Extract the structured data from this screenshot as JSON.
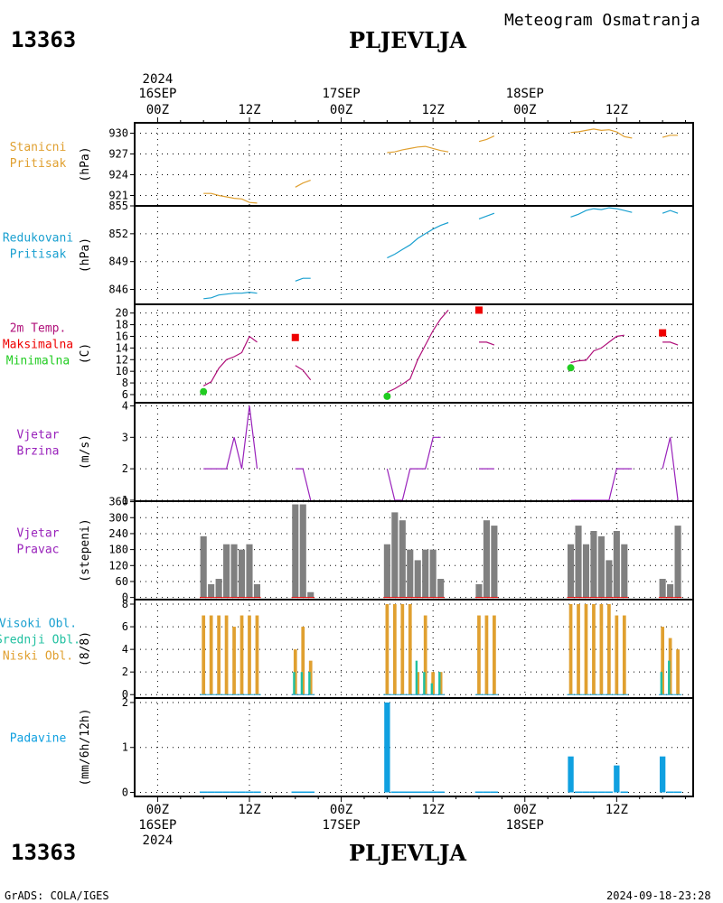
{
  "header": {
    "station_id": "13363",
    "station_name": "PLJEVLJA",
    "meteogram_title": "Meteogram Osmatranja"
  },
  "footer": {
    "station_id": "13363",
    "station_name": "PLJEVLJA",
    "credit": "GrADS: COLA/IGES",
    "timestamp": "2024-09-18-23:28"
  },
  "colors": {
    "pressure": "#e0a030",
    "reduced": "#1aa0d0",
    "temp_line": "#b0107a",
    "tmax": "#ee0000",
    "tmin": "#22cc22",
    "wind": "#9922bb",
    "bars_gray": "#808080",
    "cloud_low": "#e0a030",
    "cloud_mid": "#20c0a0",
    "cloud_high": "#1aa0d0",
    "precip": "#10a0e0"
  },
  "time_axis": {
    "top_year": "2024",
    "bottom_year": "2024",
    "major_labels": [
      {
        "t": 0,
        "hour": "00Z",
        "date": "16SEP"
      },
      {
        "t": 12,
        "hour": "12Z",
        "date": ""
      },
      {
        "t": 24,
        "hour": "00Z",
        "date": "17SEP"
      },
      {
        "t": 36,
        "hour": "12Z",
        "date": ""
      },
      {
        "t": 48,
        "hour": "00Z",
        "date": "18SEP"
      },
      {
        "t": 60,
        "hour": "12Z",
        "date": ""
      }
    ],
    "range": [
      -3,
      70
    ]
  },
  "chart_data": [
    {
      "id": "pressure",
      "type": "line",
      "label_lines": [
        "Stanicni",
        "Pritisak"
      ],
      "ylabel": "(hPa)",
      "ylim": [
        919.5,
        931.5
      ],
      "yticks": [
        921,
        924,
        927,
        930
      ],
      "segments": [
        [
          [
            6,
            921.3
          ],
          [
            7,
            921.3
          ],
          [
            8,
            921.0
          ],
          [
            9,
            920.8
          ],
          [
            10,
            920.6
          ],
          [
            11,
            920.5
          ],
          [
            12,
            920.0
          ],
          [
            13,
            919.9
          ]
        ],
        [
          [
            18,
            922.2
          ],
          [
            19,
            922.8
          ],
          [
            20,
            923.2
          ]
        ],
        [
          [
            30,
            927.2
          ],
          [
            31,
            927.3
          ],
          [
            32,
            927.6
          ],
          [
            33,
            927.8
          ],
          [
            34,
            928.0
          ],
          [
            35,
            928.1
          ],
          [
            36,
            927.8
          ],
          [
            37,
            927.5
          ],
          [
            38,
            927.3
          ]
        ],
        [
          [
            42,
            928.8
          ],
          [
            43,
            929.1
          ],
          [
            44,
            929.6
          ]
        ],
        [
          [
            54,
            930.1
          ],
          [
            55,
            930.2
          ],
          [
            56,
            930.4
          ],
          [
            57,
            930.6
          ],
          [
            58,
            930.4
          ],
          [
            59,
            930.5
          ],
          [
            60,
            930.2
          ],
          [
            61,
            929.5
          ],
          [
            62,
            929.3
          ]
        ],
        [
          [
            66,
            929.4
          ],
          [
            67,
            929.7
          ],
          [
            68,
            929.7
          ]
        ]
      ]
    },
    {
      "id": "reduced",
      "type": "line",
      "label_lines": [
        "Redukovani",
        "Pritisak"
      ],
      "ylabel": "(hPa)",
      "ylim": [
        844.4,
        855.0
      ],
      "yticks": [
        846,
        849,
        852,
        855
      ],
      "segments": [
        [
          [
            6,
            845.0
          ],
          [
            7,
            845.1
          ],
          [
            8,
            845.4
          ],
          [
            9,
            845.5
          ],
          [
            10,
            845.6
          ],
          [
            11,
            845.6
          ],
          [
            12,
            845.7
          ],
          [
            13,
            845.6
          ]
        ],
        [
          [
            18,
            846.9
          ],
          [
            19,
            847.2
          ],
          [
            20,
            847.2
          ]
        ],
        [
          [
            30,
            849.4
          ],
          [
            31,
            849.8
          ],
          [
            32,
            850.3
          ],
          [
            33,
            850.8
          ],
          [
            34,
            851.5
          ],
          [
            35,
            852.0
          ],
          [
            36,
            852.5
          ],
          [
            37,
            852.9
          ],
          [
            38,
            853.2
          ]
        ],
        [
          [
            42,
            853.6
          ],
          [
            43,
            853.9
          ],
          [
            44,
            854.2
          ]
        ],
        [
          [
            54,
            853.8
          ],
          [
            55,
            854.1
          ],
          [
            56,
            854.5
          ],
          [
            57,
            854.7
          ],
          [
            58,
            854.6
          ],
          [
            59,
            854.8
          ],
          [
            60,
            854.7
          ],
          [
            61,
            854.5
          ],
          [
            62,
            854.3
          ]
        ],
        [
          [
            66,
            854.2
          ],
          [
            67,
            854.5
          ],
          [
            68,
            854.2
          ]
        ]
      ]
    },
    {
      "id": "temperature",
      "type": "line",
      "label_lines": [
        "2m Temp.",
        "Maksimalna",
        "Minimalna"
      ],
      "ylabel": "(C)",
      "ylim": [
        4.6,
        21.5
      ],
      "yticks": [
        6,
        8,
        10,
        12,
        14,
        16,
        18,
        20
      ],
      "segments": [
        [
          [
            6,
            7.5
          ],
          [
            7,
            8.2
          ],
          [
            8,
            10.5
          ],
          [
            9,
            12.0
          ],
          [
            10,
            12.5
          ],
          [
            11,
            13.2
          ],
          [
            12,
            16.0
          ],
          [
            13,
            15.0
          ]
        ],
        [
          [
            18,
            11.0
          ],
          [
            19,
            10.2
          ],
          [
            20,
            8.5
          ]
        ],
        [
          [
            30,
            6.4
          ],
          [
            31,
            7.0
          ],
          [
            32,
            7.8
          ],
          [
            33,
            8.7
          ],
          [
            34,
            12.0
          ],
          [
            35,
            14.5
          ],
          [
            36,
            17.0
          ],
          [
            37,
            19.0
          ],
          [
            38,
            20.5
          ]
        ],
        [
          [
            42,
            15.0
          ],
          [
            43,
            15.0
          ],
          [
            44,
            14.5
          ]
        ],
        [
          [
            54,
            11.5
          ],
          [
            55,
            11.8
          ],
          [
            56,
            11.9
          ],
          [
            57,
            13.5
          ],
          [
            58,
            14.0
          ],
          [
            59,
            15.0
          ],
          [
            60,
            16.0
          ],
          [
            61,
            16.2
          ]
        ],
        [
          [
            66,
            15.0
          ],
          [
            67,
            15.0
          ],
          [
            68,
            14.5
          ]
        ]
      ],
      "tmax_points": [
        [
          18,
          15.8
        ],
        [
          42,
          20.5
        ],
        [
          66,
          16.6
        ]
      ],
      "tmin_points": [
        [
          6,
          6.5
        ],
        [
          30,
          5.7
        ],
        [
          54,
          10.6
        ]
      ]
    },
    {
      "id": "wind_speed",
      "type": "line",
      "label_lines": [
        "Vjetar",
        "Brzina"
      ],
      "ylabel": "(m/s)",
      "ylim": [
        0.97,
        4.1
      ],
      "yticks": [
        1,
        2,
        3,
        4
      ],
      "segments": [
        [
          [
            6,
            2
          ],
          [
            7,
            2
          ],
          [
            8,
            2
          ],
          [
            9,
            2
          ],
          [
            10,
            3
          ],
          [
            11,
            2
          ],
          [
            12,
            4
          ],
          [
            13,
            2
          ]
        ],
        [
          [
            18,
            2
          ],
          [
            19,
            2
          ],
          [
            20,
            1
          ]
        ],
        [
          [
            30,
            2
          ],
          [
            31,
            1
          ],
          [
            32,
            1
          ],
          [
            33,
            2
          ],
          [
            34,
            2
          ],
          [
            35,
            2
          ],
          [
            36,
            3
          ],
          [
            37,
            3
          ]
        ],
        [
          [
            42,
            2
          ],
          [
            43,
            2
          ],
          [
            44,
            2
          ]
        ],
        [
          [
            54,
            1
          ],
          [
            55,
            1
          ],
          [
            56,
            1
          ],
          [
            57,
            1
          ],
          [
            58,
            1
          ],
          [
            59,
            1
          ],
          [
            60,
            2
          ],
          [
            61,
            2
          ],
          [
            62,
            2
          ]
        ],
        [
          [
            66,
            2
          ],
          [
            67,
            3
          ],
          [
            68,
            1
          ]
        ]
      ]
    },
    {
      "id": "wind_direction",
      "type": "bar",
      "label_lines": [
        "Vjetar",
        "Pravac"
      ],
      "ylabel": "(stepeni)",
      "ylim": [
        -8,
        362
      ],
      "yticks": [
        0,
        60,
        120,
        180,
        240,
        300,
        360
      ],
      "bars": [
        [
          6,
          230
        ],
        [
          7,
          50
        ],
        [
          8,
          70
        ],
        [
          9,
          200
        ],
        [
          10,
          200
        ],
        [
          11,
          180
        ],
        [
          12,
          200
        ],
        [
          13,
          50
        ],
        [
          18,
          350
        ],
        [
          19,
          350
        ],
        [
          20,
          20
        ],
        [
          30,
          200
        ],
        [
          31,
          320
        ],
        [
          32,
          290
        ],
        [
          33,
          180
        ],
        [
          34,
          140
        ],
        [
          35,
          180
        ],
        [
          36,
          180
        ],
        [
          37,
          70
        ],
        [
          42,
          50
        ],
        [
          43,
          290
        ],
        [
          44,
          270
        ],
        [
          54,
          200
        ],
        [
          55,
          270
        ],
        [
          56,
          200
        ],
        [
          57,
          250
        ],
        [
          58,
          230
        ],
        [
          59,
          140
        ],
        [
          60,
          250
        ],
        [
          61,
          200
        ],
        [
          66,
          70
        ],
        [
          67,
          50
        ],
        [
          68,
          270
        ]
      ]
    },
    {
      "id": "clouds",
      "type": "bar",
      "label_lines": [
        "Visoki Obl.",
        "Srednji Obl.",
        "Niski Obl."
      ],
      "ylabel": "(8/8)",
      "ylim": [
        -0.3,
        8.4
      ],
      "yticks": [
        0,
        2,
        4,
        6,
        8
      ],
      "low": [
        [
          6,
          7
        ],
        [
          7,
          7
        ],
        [
          8,
          7
        ],
        [
          9,
          7
        ],
        [
          10,
          6
        ],
        [
          11,
          7
        ],
        [
          12,
          7
        ],
        [
          13,
          7
        ],
        [
          18,
          4
        ],
        [
          19,
          6
        ],
        [
          20,
          3
        ],
        [
          30,
          8
        ],
        [
          31,
          8
        ],
        [
          32,
          8
        ],
        [
          33,
          8
        ],
        [
          34,
          2
        ],
        [
          35,
          7
        ],
        [
          36,
          2
        ],
        [
          37,
          2
        ],
        [
          42,
          7
        ],
        [
          43,
          7
        ],
        [
          44,
          7
        ],
        [
          54,
          8
        ],
        [
          55,
          8
        ],
        [
          56,
          8
        ],
        [
          57,
          8
        ],
        [
          58,
          8
        ],
        [
          59,
          8
        ],
        [
          60,
          7
        ],
        [
          61,
          7
        ],
        [
          66,
          6
        ],
        [
          67,
          5
        ],
        [
          68,
          4
        ]
      ],
      "mid": [
        [
          18,
          2
        ],
        [
          19,
          2
        ],
        [
          20,
          2
        ],
        [
          34,
          3
        ],
        [
          35,
          2
        ],
        [
          36,
          1
        ],
        [
          37,
          2
        ],
        [
          66,
          2
        ],
        [
          67,
          3
        ]
      ],
      "high": []
    },
    {
      "id": "precip",
      "type": "bar",
      "label_lines": [
        "Padavine"
      ],
      "ylabel": "(mm/6h/12h)",
      "ylim": [
        -0.09,
        2.1
      ],
      "yticks": [
        0,
        1,
        2
      ],
      "bars": [
        [
          6,
          0.02
        ],
        [
          7,
          0.02
        ],
        [
          8,
          0.02
        ],
        [
          9,
          0.02
        ],
        [
          10,
          0.02
        ],
        [
          11,
          0.02
        ],
        [
          12,
          0.02
        ],
        [
          13,
          0.02
        ],
        [
          18,
          0.02
        ],
        [
          19,
          0.02
        ],
        [
          20,
          0.02
        ],
        [
          30,
          2.0
        ],
        [
          31,
          0.02
        ],
        [
          32,
          0.02
        ],
        [
          33,
          0.02
        ],
        [
          34,
          0.02
        ],
        [
          35,
          0.02
        ],
        [
          36,
          0.02
        ],
        [
          37,
          0.02
        ],
        [
          42,
          0.02
        ],
        [
          43,
          0.02
        ],
        [
          44,
          0.02
        ],
        [
          54,
          0.8
        ],
        [
          55,
          0.02
        ],
        [
          56,
          0.02
        ],
        [
          57,
          0.02
        ],
        [
          58,
          0.02
        ],
        [
          59,
          0.02
        ],
        [
          60,
          0.6
        ],
        [
          61,
          0.02
        ],
        [
          66,
          0.8
        ],
        [
          67,
          0.02
        ],
        [
          68,
          0.02
        ]
      ]
    }
  ]
}
